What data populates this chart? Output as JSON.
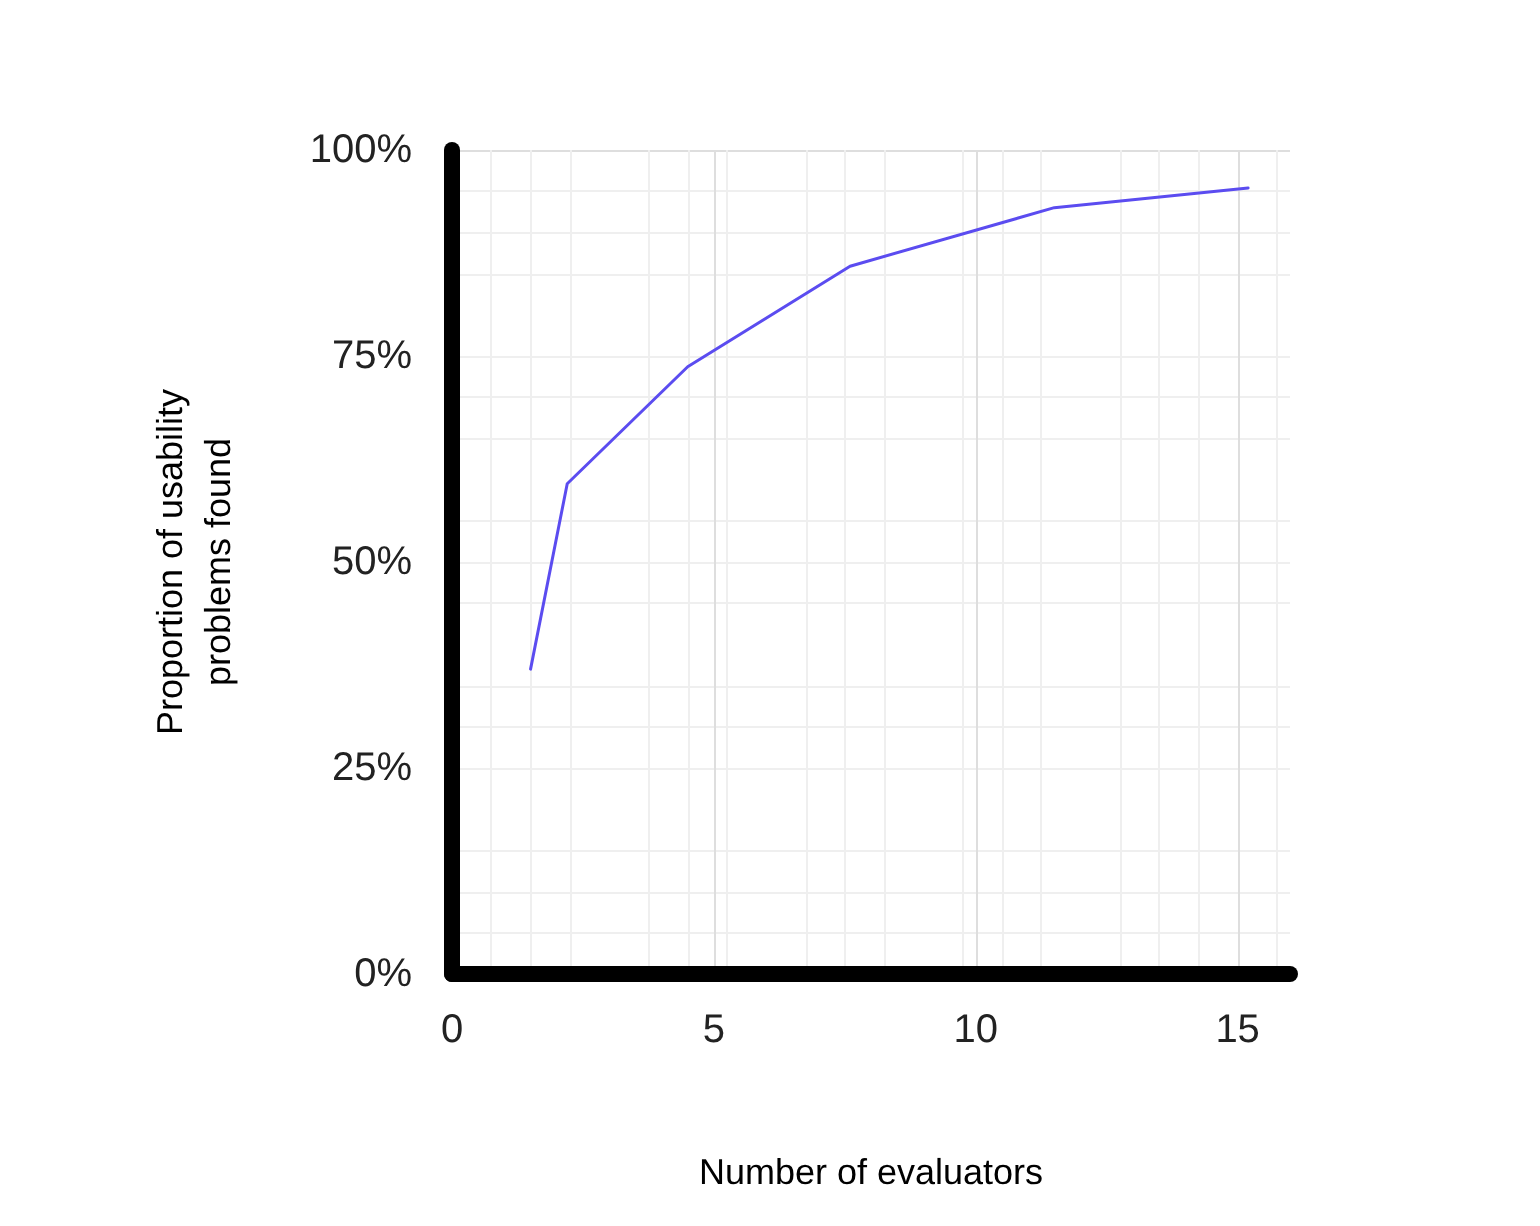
{
  "chart_data": {
    "type": "line",
    "xlabel": "Number of evaluators",
    "ylabel": "Proportion of usability\nproblems found",
    "x": [
      1.5,
      2.2,
      4.5,
      7.6,
      11.5,
      15.2
    ],
    "series": [
      {
        "color": "#5b4cf0",
        "values": [
          37,
          59.5,
          73.7,
          85.9,
          93,
          95.4
        ]
      }
    ],
    "xlim": [
      0,
      16
    ],
    "xticks": [
      0,
      5,
      10,
      15
    ],
    "ylim": [
      0,
      100
    ],
    "yticks": [
      {
        "value": 0,
        "label": "0%"
      },
      {
        "value": 25,
        "label": "25%"
      },
      {
        "value": 50,
        "label": "50%"
      },
      {
        "value": 75,
        "label": "75%"
      },
      {
        "value": 100,
        "label": "100%"
      }
    ],
    "grid": true,
    "marker": "none",
    "line_style": "solid"
  }
}
